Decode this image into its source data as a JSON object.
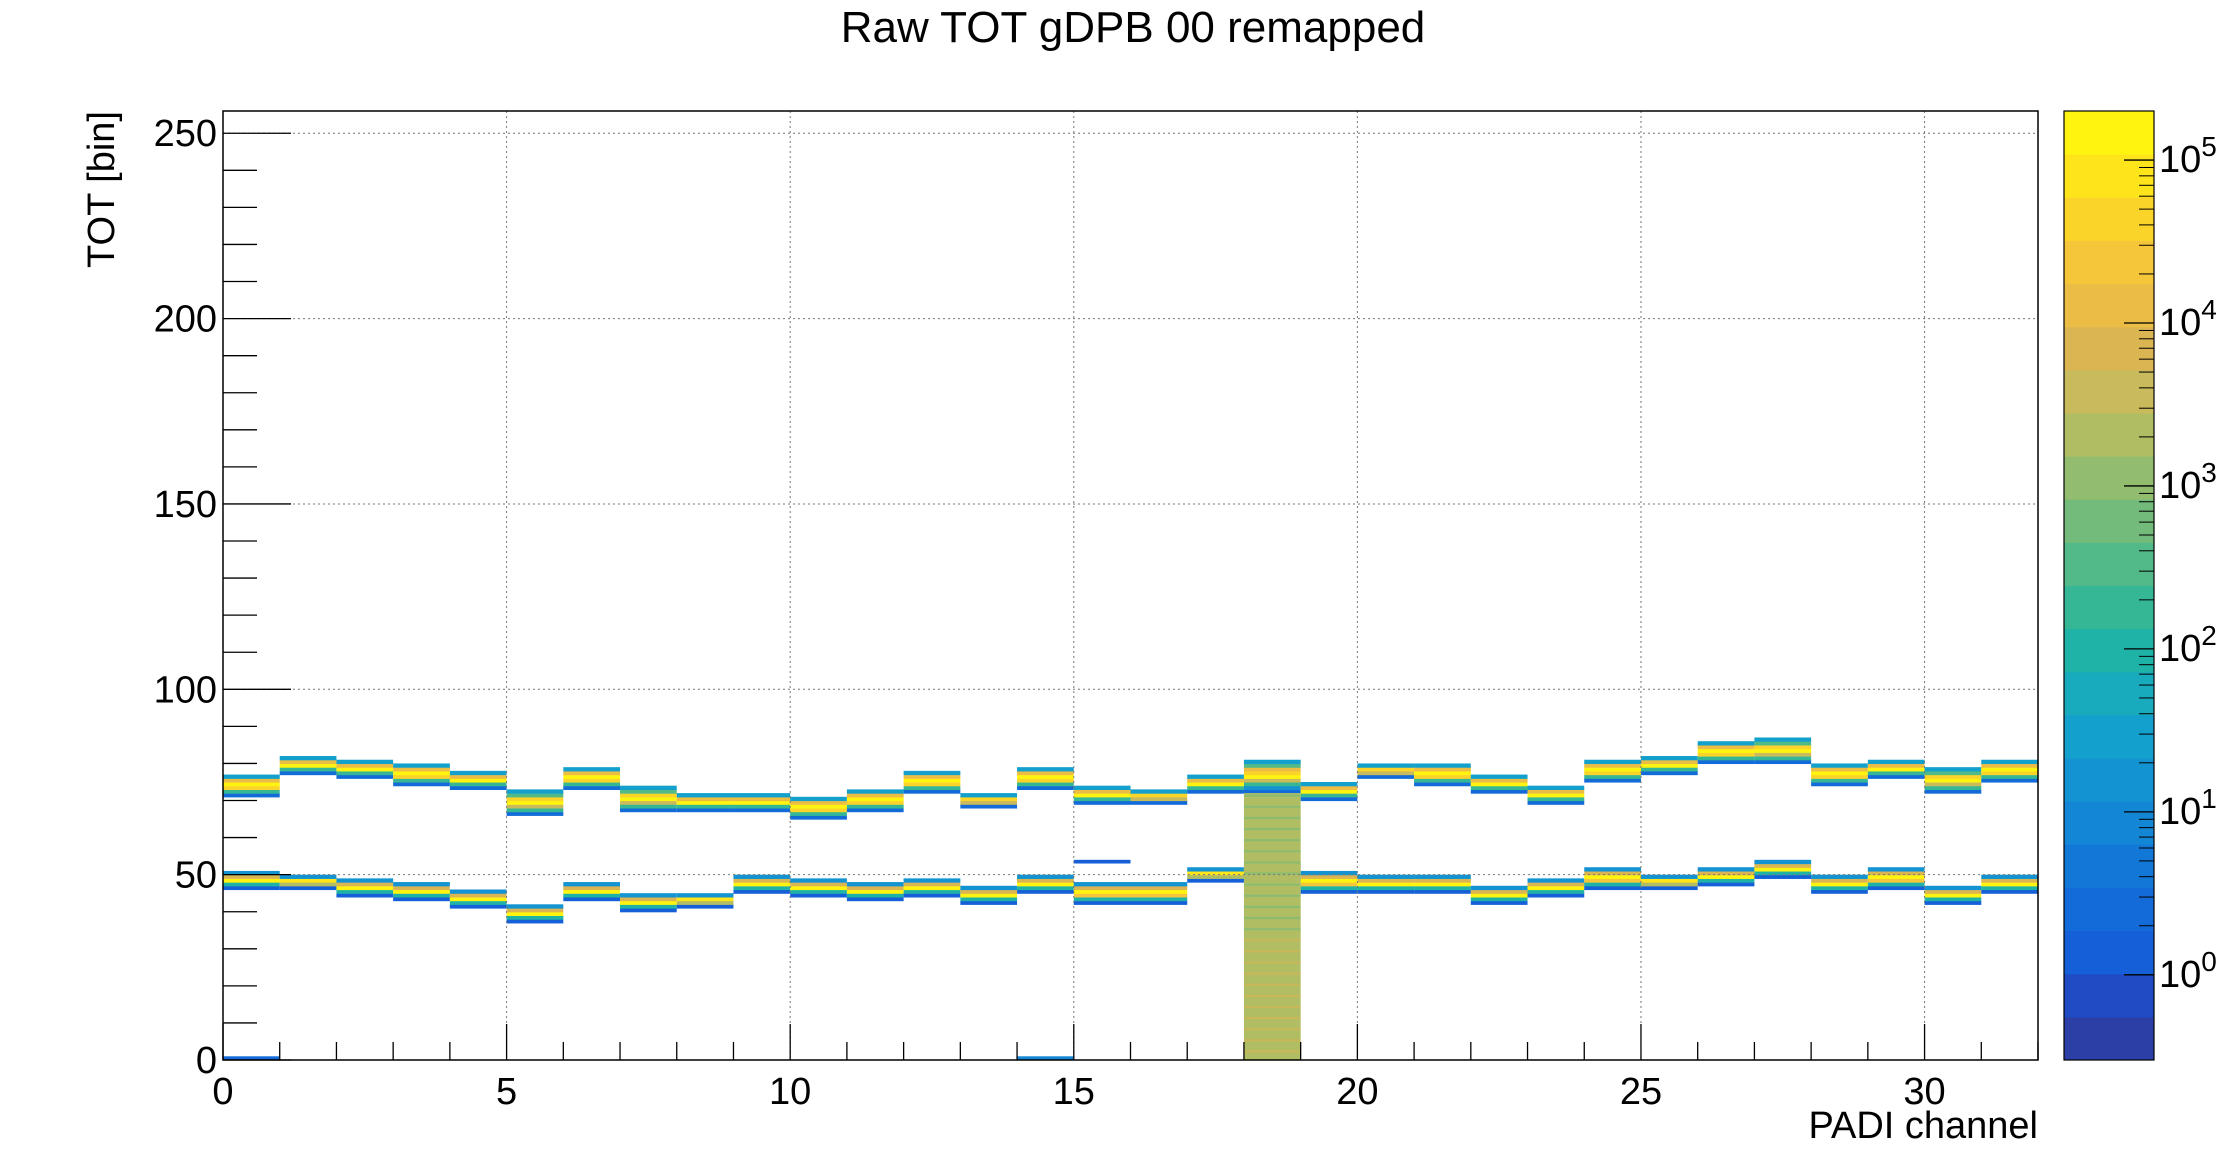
{
  "chart_data": {
    "type": "heatmap",
    "title": "Raw TOT gDPB 00 remapped",
    "xlabel": "PADI channel",
    "ylabel": "TOT [bin]",
    "xlim": [
      0,
      32
    ],
    "ylim": [
      0,
      256
    ],
    "grid": true,
    "x_ticks": [
      0,
      5,
      10,
      15,
      20,
      25,
      30
    ],
    "x_tick_labels": [
      "0",
      "5",
      "10",
      "15",
      "20",
      "25",
      "30"
    ],
    "y_ticks": [
      0,
      50,
      100,
      150,
      200,
      250
    ],
    "y_tick_labels": [
      "0",
      "50",
      "100",
      "150",
      "200",
      "250"
    ],
    "z_scale": "log",
    "z_range": [
      0.3,
      200000
    ],
    "z_ticks": [
      1,
      10,
      100,
      1000,
      10000,
      100000
    ],
    "z_tick_bases": [
      "10",
      "10",
      "10",
      "10",
      "10",
      "10"
    ],
    "z_tick_exponents": [
      "0",
      "1",
      "2",
      "3",
      "4",
      "5"
    ],
    "palette": [
      "#2c3fa6",
      "#1f4cc4",
      "#1560d8",
      "#126bd8",
      "#1278d8",
      "#1386d6",
      "#1493d2",
      "#14a0cc",
      "#18abbd",
      "#1fb3a8",
      "#35b796",
      "#52ba88",
      "#72bb7a",
      "#92bd6e",
      "#b0bd63",
      "#c9ba5c",
      "#dcb553",
      "#ecbd45",
      "#f6c63a",
      "#fbd42a",
      "#fde41b",
      "#fff40f"
    ],
    "channel_bands": [
      {
        "channel": 0,
        "upper_low": 71,
        "upper_high": 77,
        "lower_low": 46,
        "lower_high": 51
      },
      {
        "channel": 1,
        "upper_low": 77,
        "upper_high": 82,
        "lower_low": 46,
        "lower_high": 50
      },
      {
        "channel": 2,
        "upper_low": 76,
        "upper_high": 81,
        "lower_low": 44,
        "lower_high": 49
      },
      {
        "channel": 3,
        "upper_low": 74,
        "upper_high": 80,
        "lower_low": 43,
        "lower_high": 48
      },
      {
        "channel": 4,
        "upper_low": 73,
        "upper_high": 78,
        "lower_low": 41,
        "lower_high": 46
      },
      {
        "channel": 5,
        "upper_low": 66,
        "upper_high": 73,
        "lower_low": 37,
        "lower_high": 42
      },
      {
        "channel": 6,
        "upper_low": 73,
        "upper_high": 79,
        "lower_low": 43,
        "lower_high": 48
      },
      {
        "channel": 7,
        "upper_low": 67,
        "upper_high": 74,
        "lower_low": 40,
        "lower_high": 45
      },
      {
        "channel": 8,
        "upper_low": 67,
        "upper_high": 72,
        "lower_low": 41,
        "lower_high": 45
      },
      {
        "channel": 9,
        "upper_low": 67,
        "upper_high": 72,
        "lower_low": 45,
        "lower_high": 50
      },
      {
        "channel": 10,
        "upper_low": 65,
        "upper_high": 71,
        "lower_low": 44,
        "lower_high": 49
      },
      {
        "channel": 11,
        "upper_low": 67,
        "upper_high": 73,
        "lower_low": 43,
        "lower_high": 48
      },
      {
        "channel": 12,
        "upper_low": 72,
        "upper_high": 78,
        "lower_low": 44,
        "lower_high": 49
      },
      {
        "channel": 13,
        "upper_low": 68,
        "upper_high": 72,
        "lower_low": 42,
        "lower_high": 47
      },
      {
        "channel": 14,
        "upper_low": 73,
        "upper_high": 79,
        "lower_low": 45,
        "lower_high": 50
      },
      {
        "channel": 15,
        "upper_low": 69,
        "upper_high": 74,
        "lower_low": 42,
        "lower_high": 48
      },
      {
        "channel": 16,
        "upper_low": 69,
        "upper_high": 73,
        "lower_low": 42,
        "lower_high": 48
      },
      {
        "channel": 17,
        "upper_low": 72,
        "upper_high": 77,
        "lower_low": 48,
        "lower_high": 52
      },
      {
        "channel": 18,
        "upper_low": 72,
        "upper_high": 81,
        "lower_low": 48,
        "lower_high": 53
      },
      {
        "channel": 19,
        "upper_low": 70,
        "upper_high": 75,
        "lower_low": 45,
        "lower_high": 51
      },
      {
        "channel": 20,
        "upper_low": 76,
        "upper_high": 80,
        "lower_low": 45,
        "lower_high": 50
      },
      {
        "channel": 21,
        "upper_low": 74,
        "upper_high": 80,
        "lower_low": 45,
        "lower_high": 50
      },
      {
        "channel": 22,
        "upper_low": 72,
        "upper_high": 77,
        "lower_low": 42,
        "lower_high": 47
      },
      {
        "channel": 23,
        "upper_low": 69,
        "upper_high": 74,
        "lower_low": 44,
        "lower_high": 49
      },
      {
        "channel": 24,
        "upper_low": 75,
        "upper_high": 81,
        "lower_low": 46,
        "lower_high": 52
      },
      {
        "channel": 25,
        "upper_low": 77,
        "upper_high": 82,
        "lower_low": 46,
        "lower_high": 50
      },
      {
        "channel": 26,
        "upper_low": 80,
        "upper_high": 86,
        "lower_low": 47,
        "lower_high": 52
      },
      {
        "channel": 27,
        "upper_low": 80,
        "upper_high": 87,
        "lower_low": 49,
        "lower_high": 54
      },
      {
        "channel": 28,
        "upper_low": 74,
        "upper_high": 80,
        "lower_low": 45,
        "lower_high": 50
      },
      {
        "channel": 29,
        "upper_low": 76,
        "upper_high": 81,
        "lower_low": 46,
        "lower_high": 52
      },
      {
        "channel": 30,
        "upper_low": 72,
        "upper_high": 79,
        "lower_low": 42,
        "lower_high": 47
      },
      {
        "channel": 31,
        "upper_low": 75,
        "upper_high": 81,
        "lower_low": 45,
        "lower_high": 50
      }
    ],
    "extra_cells": [
      {
        "channel": 0,
        "tot_low": 0,
        "tot_high": 1,
        "level": 3
      },
      {
        "channel": 14,
        "tot_low": 0,
        "tot_high": 1,
        "level": 5
      },
      {
        "channel": 15,
        "tot_low": 53,
        "tot_high": 54,
        "level": 2
      },
      {
        "channel": 18,
        "tot_low": 0,
        "tot_high": 72,
        "level": 14
      }
    ]
  }
}
